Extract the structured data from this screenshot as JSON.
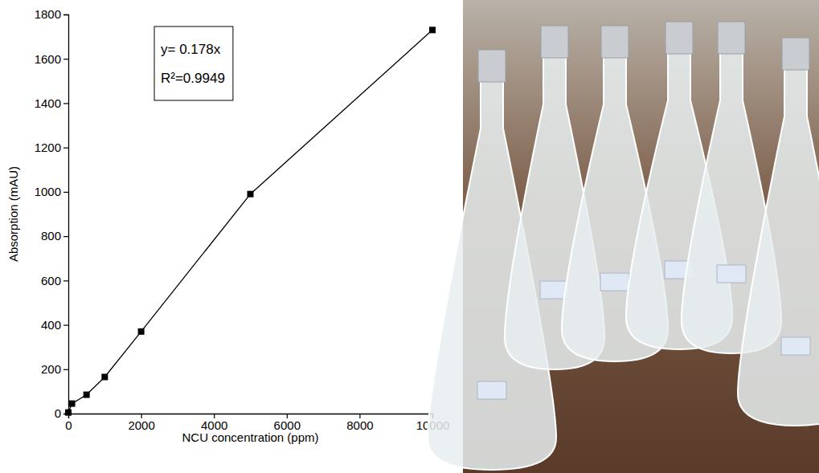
{
  "chart_data": {
    "type": "line",
    "x": [
      0,
      100,
      500,
      1000,
      2000,
      5000,
      10000
    ],
    "values": [
      5,
      45,
      85,
      165,
      370,
      990,
      1730
    ],
    "color": "#000000",
    "marker": "square",
    "xlim": [
      0,
      10000
    ],
    "ylim": [
      0,
      1800
    ],
    "xticks": [
      0,
      2000,
      4000,
      6000,
      8000,
      10000
    ],
    "yticks": [
      0,
      200,
      400,
      600,
      800,
      1000,
      1200,
      1400,
      1600,
      1800
    ],
    "x_label": "NCU concentration (ppm)",
    "y_label": "Absorption (mAU)",
    "annotations": [
      "y= 0.178x",
      "R²=0.9949"
    ]
  }
}
